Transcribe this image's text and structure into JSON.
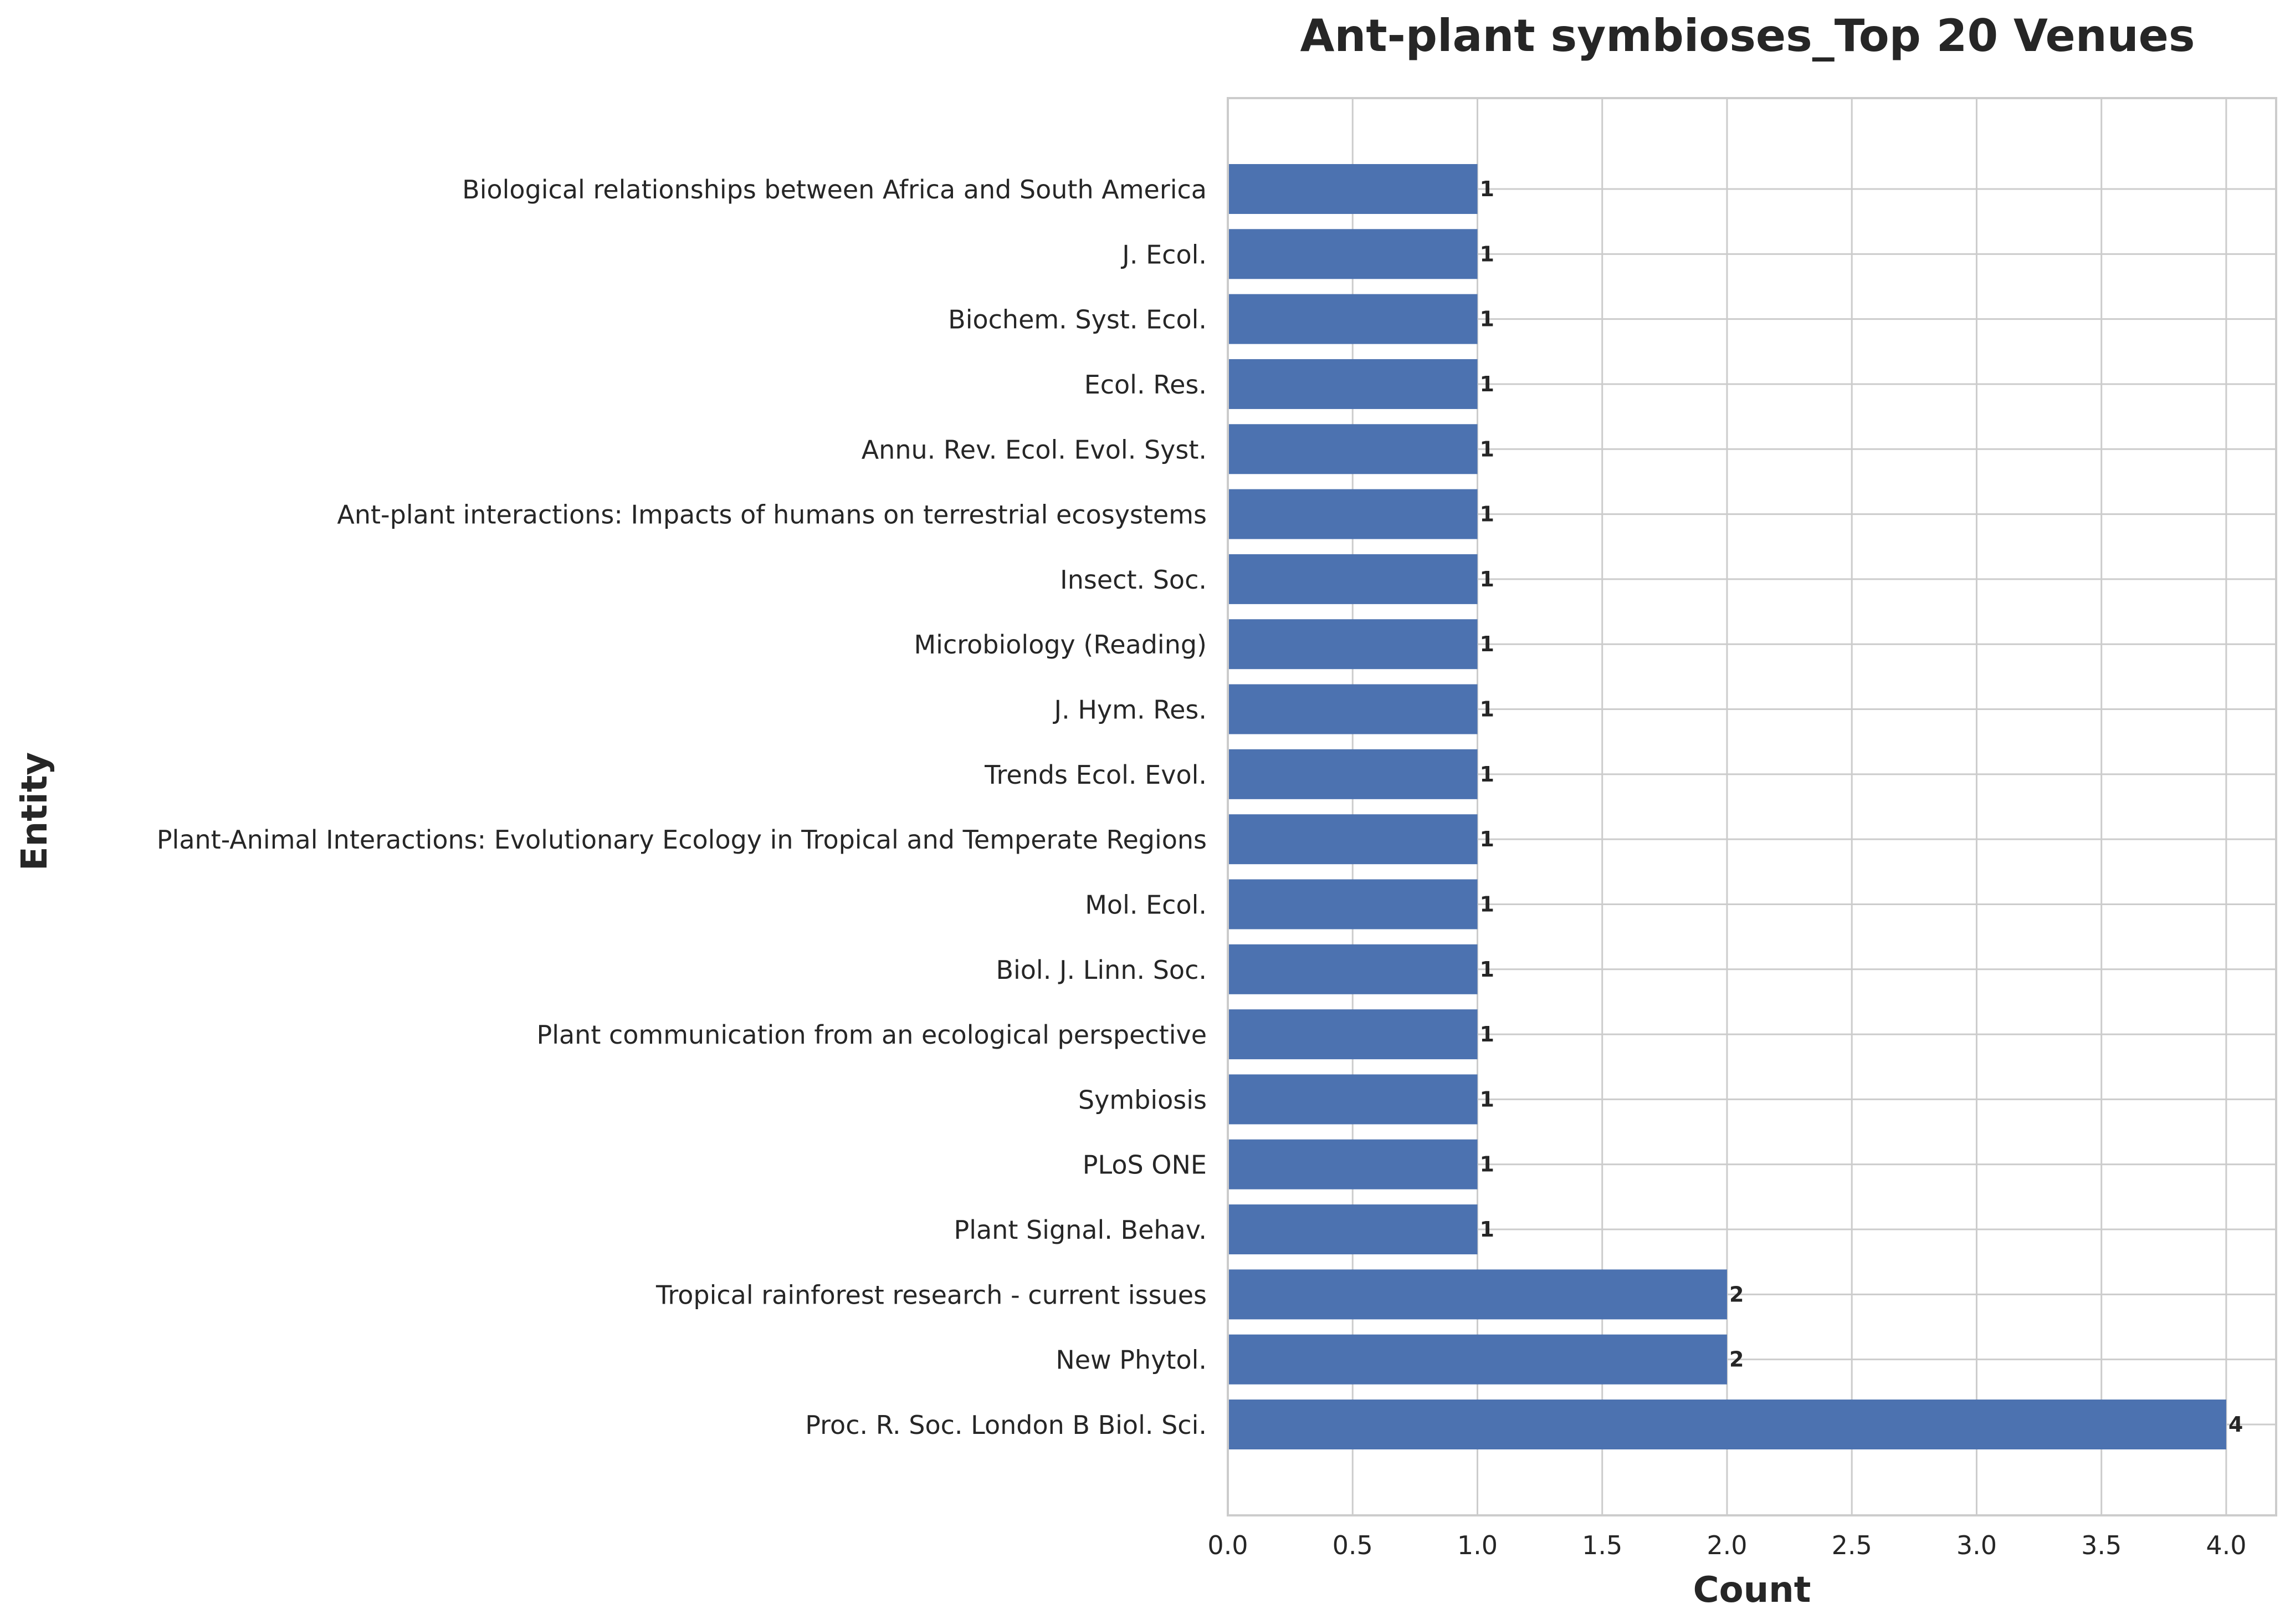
{
  "chart_data": {
    "type": "bar",
    "orientation": "horizontal",
    "title": "Ant-plant symbioses_Top 20 Venues",
    "xlabel": "Count",
    "ylabel": "Entity",
    "xlim": [
      0,
      4.2
    ],
    "xticks": [
      "0.0",
      "0.5",
      "1.0",
      "1.5",
      "2.0",
      "2.5",
      "3.0",
      "3.5",
      "4.0"
    ],
    "grid": true,
    "bar_color": "#4c72b0",
    "categories": [
      "Biological relationships between Africa and South America",
      "J. Ecol.",
      "Biochem. Syst. Ecol.",
      "Ecol. Res.",
      "Annu. Rev. Ecol. Evol. Syst.",
      "Ant-plant interactions: Impacts of humans on terrestrial ecosystems",
      "Insect. Soc.",
      "Microbiology (Reading)",
      "J. Hym. Res.",
      "Trends Ecol. Evol.",
      "Plant-Animal Interactions: Evolutionary Ecology in Tropical and Temperate Regions",
      "Mol. Ecol.",
      "Biol. J. Linn. Soc.",
      "Plant communication from an ecological perspective",
      "Symbiosis",
      "PLoS ONE",
      "Plant Signal. Behav.",
      "Tropical rainforest research - current issues",
      "New Phytol.",
      "Proc. R. Soc. London B Biol. Sci."
    ],
    "values": [
      1,
      1,
      1,
      1,
      1,
      1,
      1,
      1,
      1,
      1,
      1,
      1,
      1,
      1,
      1,
      1,
      1,
      2,
      2,
      4
    ],
    "data_labels": [
      "1",
      "1",
      "1",
      "1",
      "1",
      "1",
      "1",
      "1",
      "1",
      "1",
      "1",
      "1",
      "1",
      "1",
      "1",
      "1",
      "1",
      "2",
      "2",
      "4"
    ]
  }
}
